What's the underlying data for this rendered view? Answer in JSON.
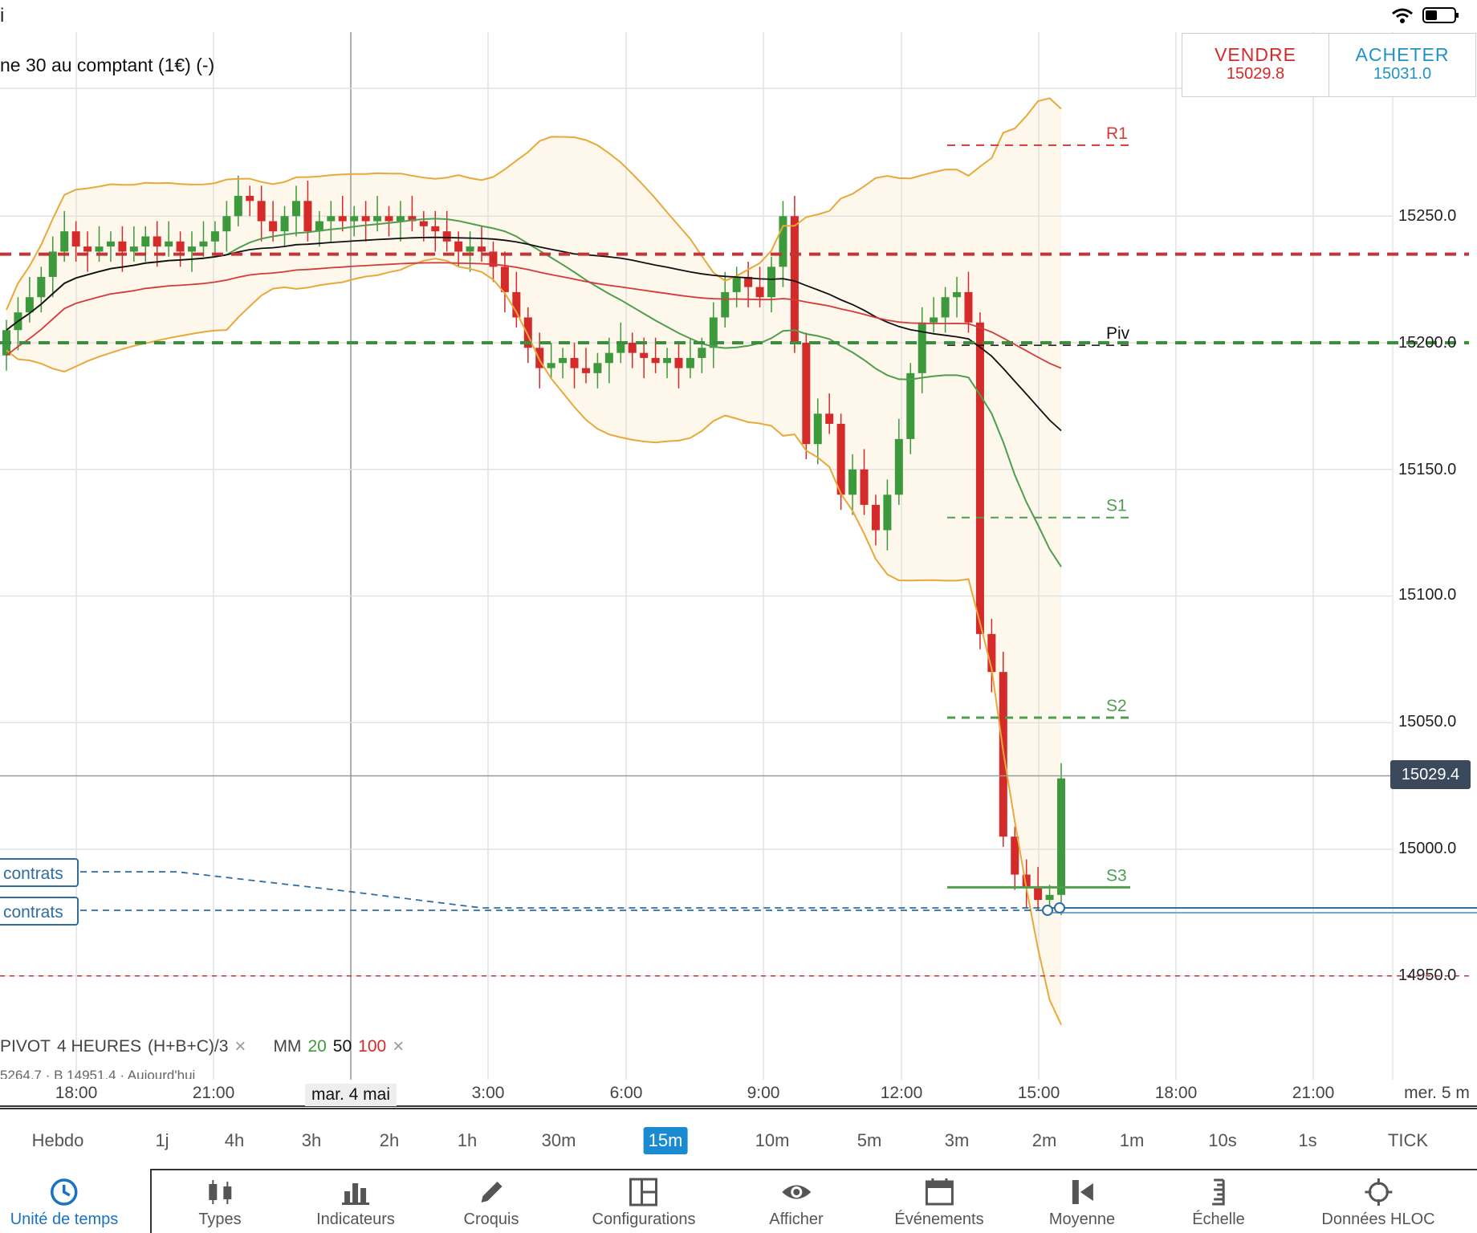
{
  "status_bar": {
    "left_text": "i"
  },
  "instrument": {
    "title": "ne 30 au comptant (1€) (-)"
  },
  "trade": {
    "sell": {
      "label": "VENDRE",
      "price": "15029.8"
    },
    "buy": {
      "label": "ACHETER",
      "price": "15031.0"
    }
  },
  "chart_data": {
    "type": "candlestick",
    "price_axis": [
      "15250.0",
      "15200.0",
      "15150.0",
      "15100.0",
      "15050.0",
      "15000.0",
      "14950.0"
    ],
    "current_price": "15029.4",
    "time_axis": [
      "18:00",
      "21:00",
      "mar. 4 mai",
      "3:00",
      "6:00",
      "9:00",
      "12:00",
      "15:00",
      "18:00",
      "21:00",
      "mer. 5 m"
    ],
    "pivot_labels": [
      "R1",
      "Piv",
      "S1",
      "S2",
      "S3"
    ],
    "ohlc_close_approx": [
      15205,
      15212,
      15218,
      15226,
      15236,
      15244,
      15238,
      15236,
      15238,
      15240,
      15236,
      15238,
      15242,
      15238,
      15240,
      15236,
      15238,
      15240,
      15244,
      15250,
      15258,
      15256,
      15248,
      15244,
      15250,
      15256,
      15244,
      15248,
      15250,
      15248,
      15250,
      15248,
      15250,
      15248,
      15250,
      15248,
      15246,
      15244,
      15240,
      15236,
      15238,
      15236,
      15230,
      15220,
      15210,
      15198,
      15190,
      15192,
      15194,
      15190,
      15188,
      15192,
      15196,
      15200,
      15196,
      15194,
      15192,
      15194,
      15190,
      15194,
      15198,
      15210,
      15220,
      15226,
      15222,
      15218,
      15230,
      15250,
      15200,
      15160,
      15172,
      15168,
      15140,
      15150,
      15136,
      15126,
      15140,
      15162,
      15188,
      15208,
      15210,
      15218,
      15220,
      15208,
      15085,
      15070,
      15005,
      14990,
      14985,
      14980,
      14982,
      15028
    ]
  },
  "order_tags": [
    "contrats",
    "contrats"
  ],
  "indicator_legend": {
    "pivot": "PIVOT",
    "period": "4 HEURES",
    "formula": "(H+B+C)/3",
    "ma": "MM",
    "ma20": "20",
    "ma50": "50",
    "ma100": "100",
    "sub": "5264,7 · B 14951,4 · Aujourd'hui"
  },
  "timeframes": [
    "Hebdo",
    "1j",
    "4h",
    "3h",
    "2h",
    "1h",
    "30m",
    "15m",
    "10m",
    "5m",
    "3m",
    "2m",
    "1m",
    "10s",
    "1s",
    "TICK"
  ],
  "active_timeframe": "15m",
  "toolbar": {
    "time_unit": "Unité de temps",
    "types": "Types",
    "indicators": "Indicateurs",
    "sketch": "Croquis",
    "configs": "Configurations",
    "display": "Afficher",
    "events": "Événements",
    "average": "Moyenne",
    "scale": "Échelle",
    "hloc": "Données HLOC"
  },
  "colors": {
    "up": "#3c9a3c",
    "down": "#d42a2a",
    "bollinger": "#e8a93a",
    "accent": "#1a8bd0"
  }
}
